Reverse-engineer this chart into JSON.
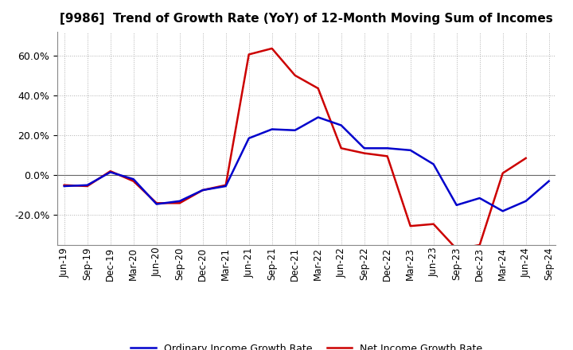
{
  "title": "[9986]  Trend of Growth Rate (YoY) of 12-Month Moving Sum of Incomes",
  "x_labels": [
    "Jun-19",
    "Sep-19",
    "Dec-19",
    "Mar-20",
    "Jun-20",
    "Sep-20",
    "Dec-20",
    "Mar-21",
    "Jun-21",
    "Sep-21",
    "Dec-21",
    "Mar-22",
    "Jun-22",
    "Sep-22",
    "Dec-22",
    "Mar-23",
    "Jun-23",
    "Sep-23",
    "Dec-23",
    "Mar-24",
    "Jun-24",
    "Sep-24"
  ],
  "ordinary_income": [
    -5.5,
    -5.0,
    1.5,
    -2.0,
    -14.5,
    -13.0,
    -7.5,
    -5.5,
    18.5,
    23.0,
    22.5,
    29.0,
    25.0,
    13.5,
    13.5,
    12.5,
    5.5,
    -15.0,
    -11.5,
    -18.0,
    -13.0,
    -3.0
  ],
  "net_income": [
    -5.0,
    -5.5,
    2.0,
    -3.0,
    -14.0,
    -14.0,
    -7.5,
    -5.0,
    60.5,
    63.5,
    50.0,
    43.5,
    13.5,
    11.0,
    9.5,
    -25.5,
    -24.5,
    -37.0,
    -35.0,
    1.0,
    8.5,
    null
  ],
  "ordinary_color": "#0000cc",
  "net_color": "#cc0000",
  "ylim": [
    -35,
    72
  ],
  "yticks": [
    -20.0,
    0.0,
    20.0,
    40.0,
    60.0
  ],
  "background_color": "#ffffff",
  "grid_color": "#b0b0b0",
  "legend_ordinary": "Ordinary Income Growth Rate",
  "legend_net": "Net Income Growth Rate",
  "title_fontsize": 11,
  "tick_fontsize": 8.5
}
